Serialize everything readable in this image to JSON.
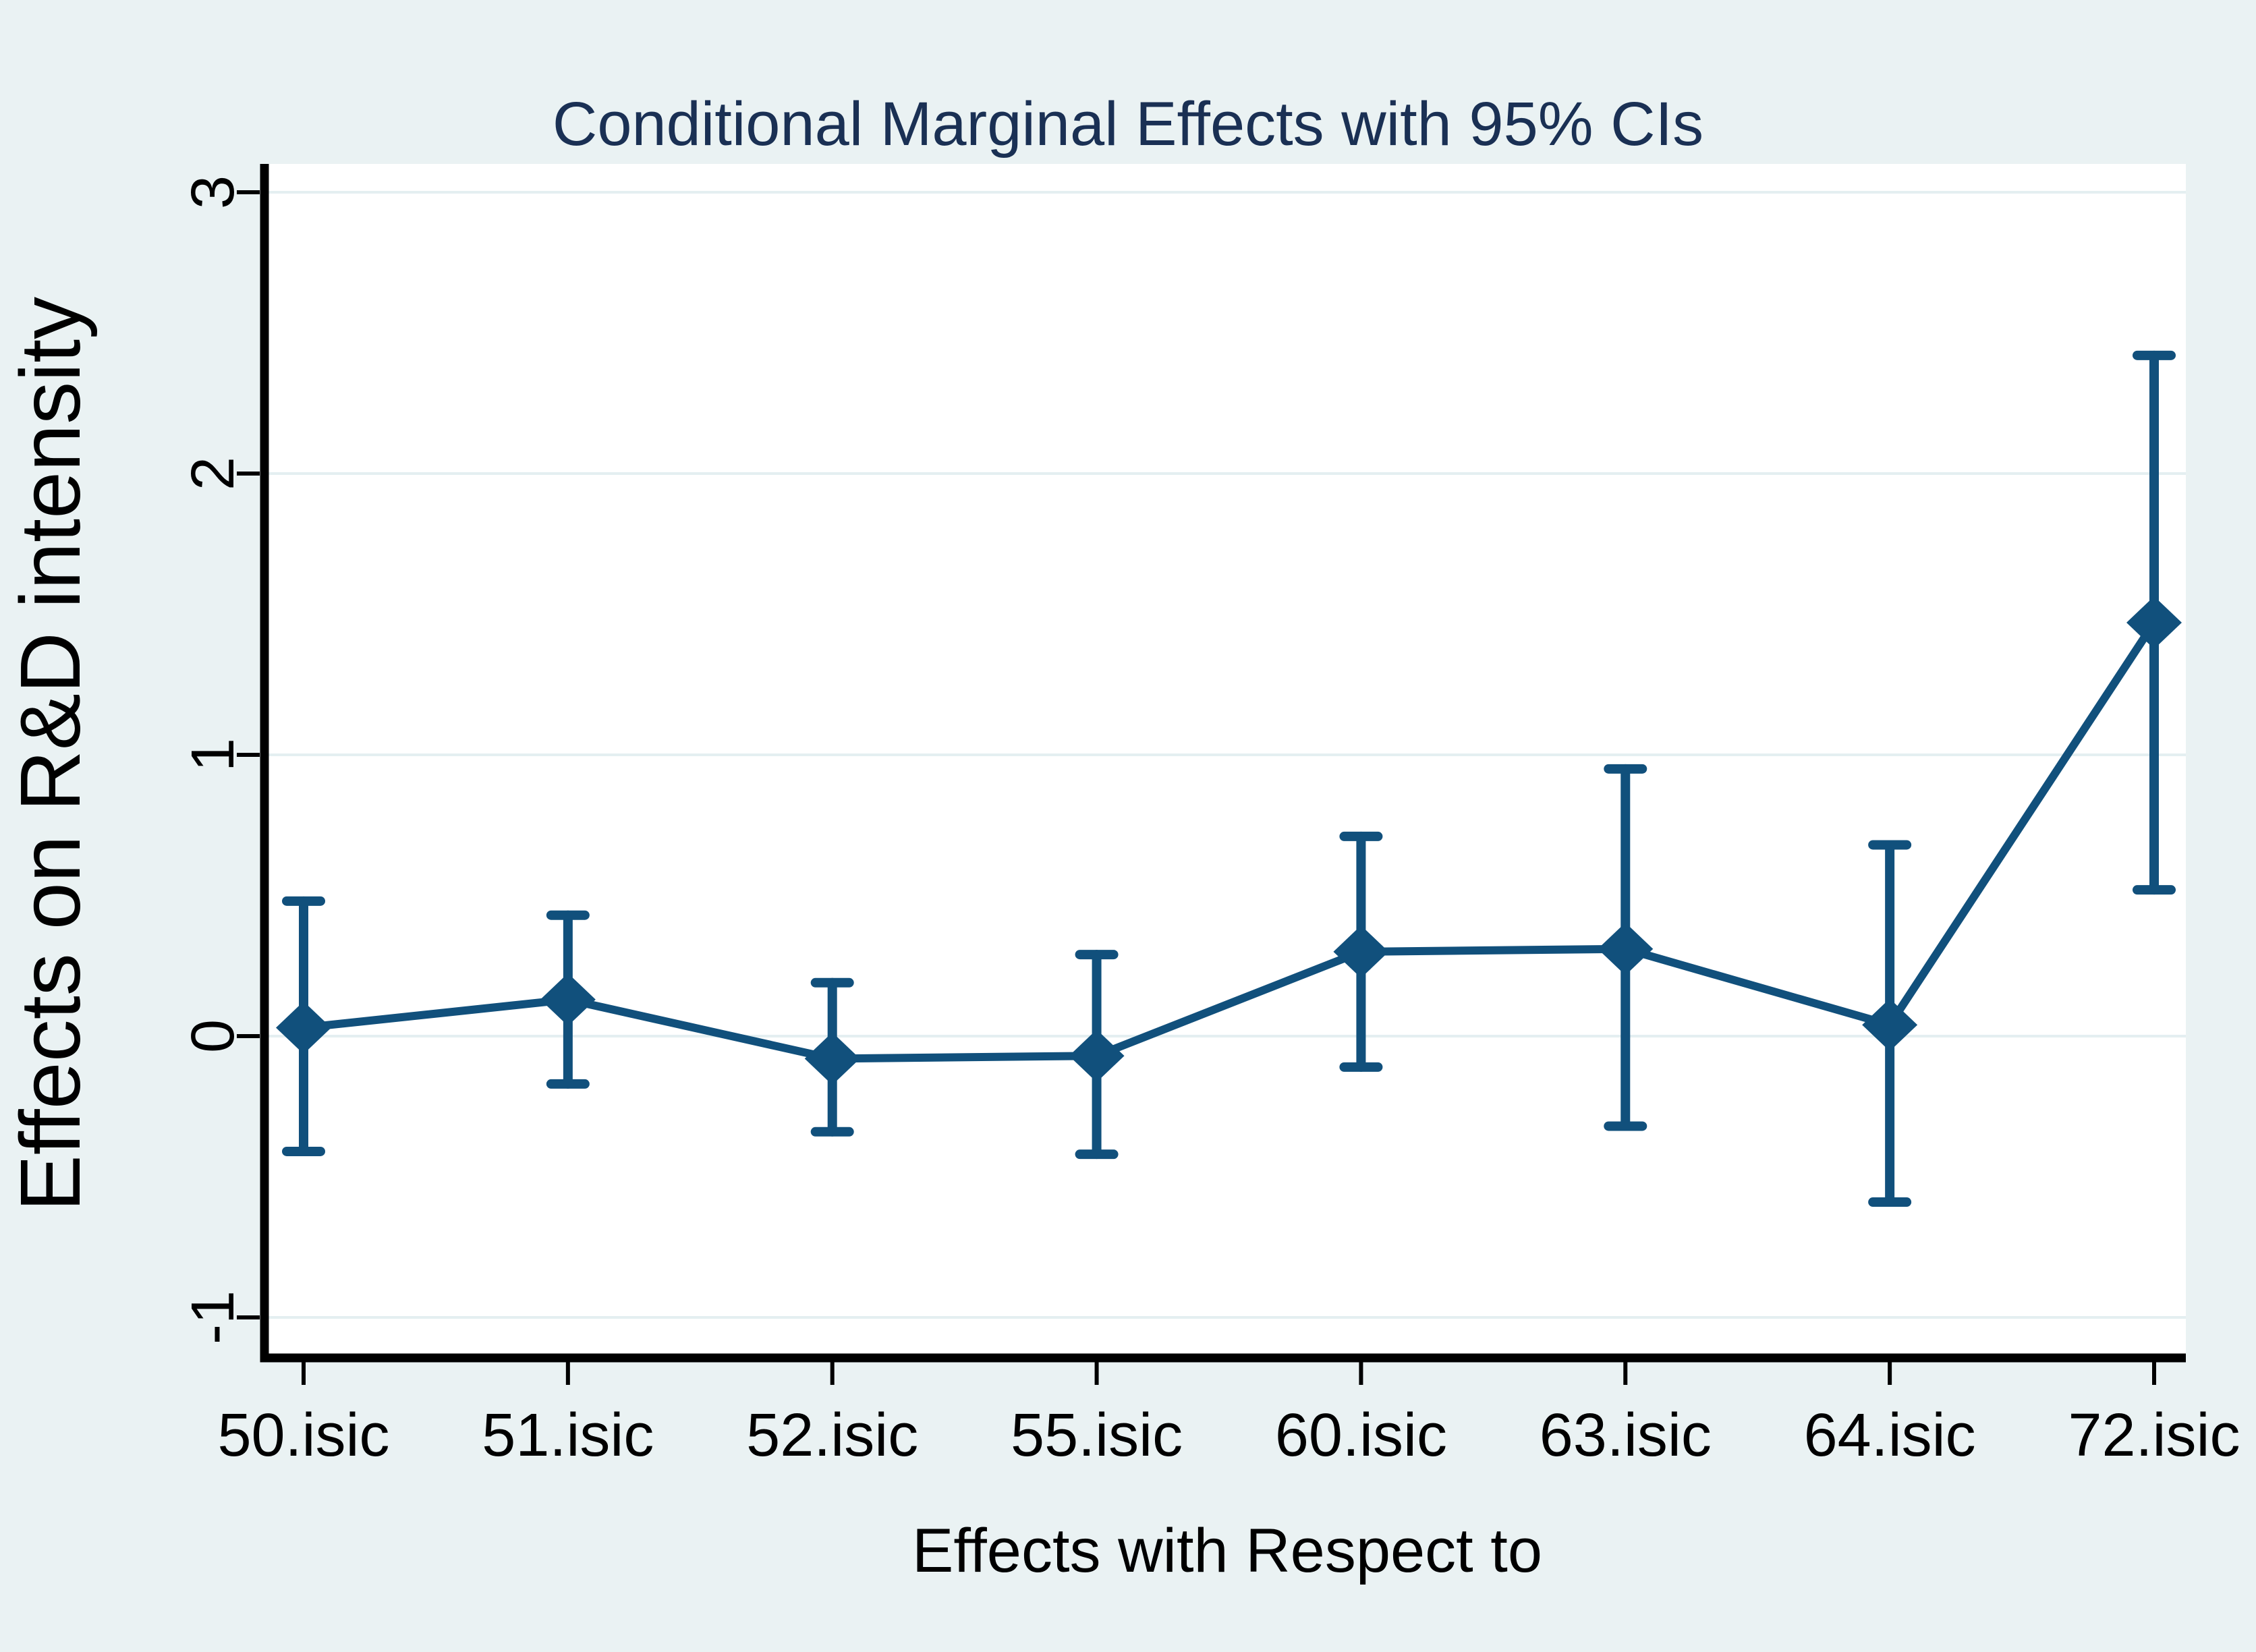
{
  "chart_data": {
    "type": "line",
    "subtype": "point-estimates-with-95ci-errorbars",
    "title": "Conditional Marginal Effects with 95% CIs",
    "xlabel": "Effects with Respect to",
    "ylabel": "Effects on R&D intensity",
    "categories": [
      "50.isic",
      "51.isic",
      "52.isic",
      "55.isic",
      "60.isic",
      "63.isic",
      "64.isic",
      "72.isic"
    ],
    "series": [
      {
        "name": "conditional_marginal_effect",
        "values": [
          0.03,
          0.13,
          -0.08,
          -0.07,
          0.3,
          0.31,
          0.04,
          1.47
        ],
        "ci_low": [
          -0.41,
          -0.17,
          -0.34,
          -0.42,
          -0.11,
          -0.32,
          -0.59,
          0.52
        ],
        "ci_high": [
          0.48,
          0.43,
          0.19,
          0.29,
          0.71,
          0.95,
          0.68,
          2.42
        ]
      }
    ],
    "yticks": [
      3,
      2,
      1,
      0,
      -1
    ],
    "ytick_labels": [
      "3",
      "2",
      "1",
      "0",
      "-1"
    ],
    "ylim": [
      -1.13,
      3.1
    ],
    "grid": true,
    "legend_position": "none",
    "marker": "diamond"
  },
  "colors": {
    "background": "#eaf2f3",
    "plot_background": "#ffffff",
    "gridline": "#e4eff1",
    "series_navy": "#11507c",
    "title_text": "#1a3054",
    "axis_text": "#000000",
    "axis_line": "#000000"
  }
}
